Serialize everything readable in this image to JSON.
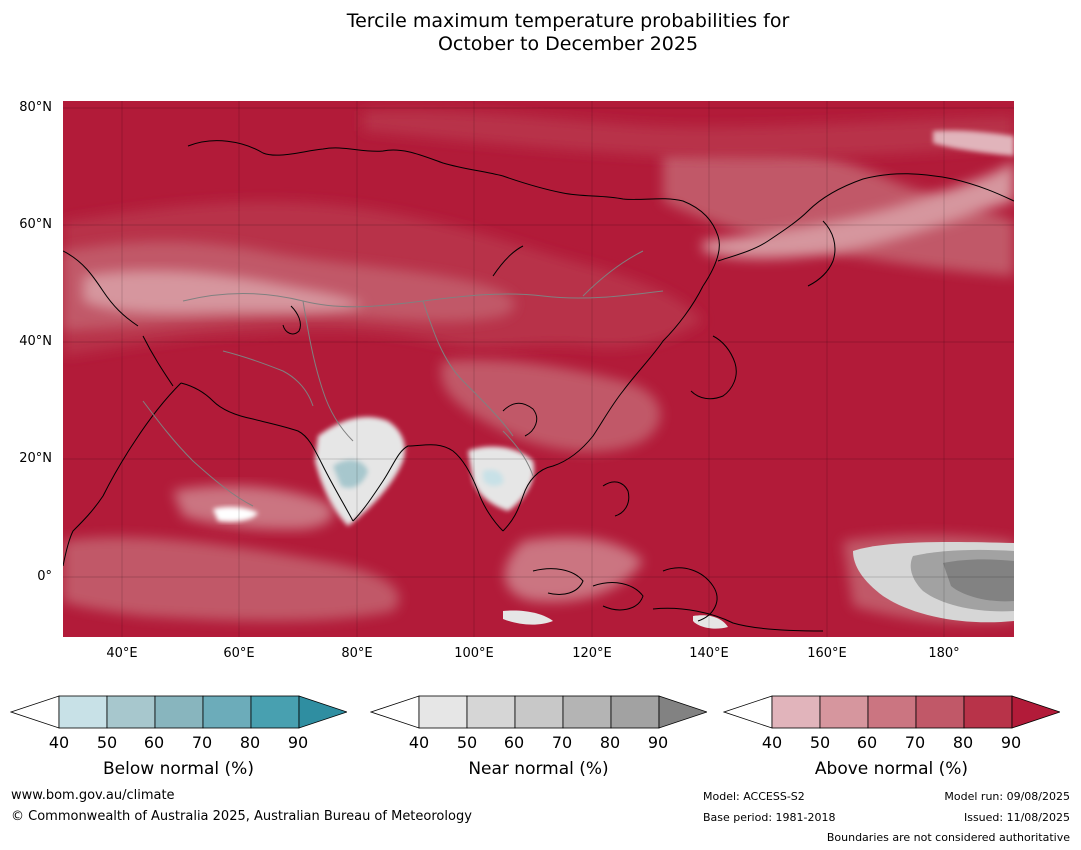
{
  "title": {
    "line1": "Tercile maximum temperature probabilities for",
    "line2": "October to December 2025"
  },
  "map": {
    "lat_labels": [
      "80°N",
      "60°N",
      "40°N",
      "20°N",
      "0°"
    ],
    "lon_labels": [
      "40°E",
      "60°E",
      "80°E",
      "100°E",
      "120°E",
      "140°E",
      "160°E",
      "180°"
    ],
    "extent": {
      "lon": [
        30,
        192
      ],
      "lat": [
        -10,
        81
      ]
    }
  },
  "colorbars": [
    {
      "name": "below",
      "label": "Below normal (%)",
      "ticks": [
        "40",
        "50",
        "60",
        "70",
        "80",
        "90"
      ],
      "colors": [
        "#ffffff",
        "#c8e1e7",
        "#a7c7cd",
        "#88b5be",
        "#6cacba",
        "#48a0b0",
        "#2f8ea1"
      ]
    },
    {
      "name": "near",
      "label": "Near normal (%)",
      "ticks": [
        "40",
        "50",
        "60",
        "70",
        "80",
        "90"
      ],
      "colors": [
        "#ffffff",
        "#e6e6e6",
        "#d6d6d6",
        "#c8c8c8",
        "#b4b4b4",
        "#a2a2a2",
        "#828282"
      ]
    },
    {
      "name": "above",
      "label": "Above normal (%)",
      "ticks": [
        "40",
        "50",
        "60",
        "70",
        "80",
        "90"
      ],
      "colors": [
        "#ffffff",
        "#e1b4bb",
        "#d6969e",
        "#cb7581",
        "#c15868",
        "#b83349",
        "#b21b39"
      ]
    }
  ],
  "footer": {
    "website": "www.bom.gov.au/climate",
    "copyright": "© Commonwealth of Australia 2025, Australian Bureau of Meteorology",
    "model": "Model: ACCESS-S2",
    "base_period": "Base period: 1981-2018",
    "model_run": "Model run: 09/08/2025",
    "issued": "Issued: 11/08/2025",
    "disclaimer": "Boundaries are not considered authoritative"
  }
}
